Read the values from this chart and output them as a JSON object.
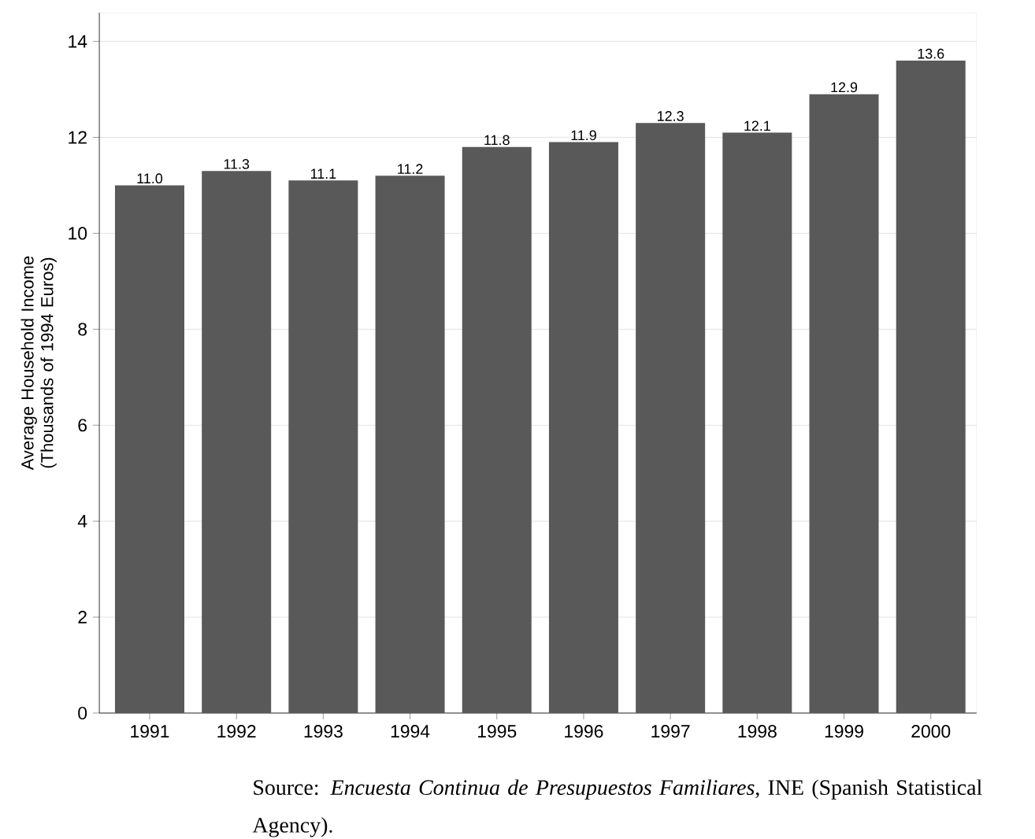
{
  "chart_data": {
    "type": "bar",
    "ylabel": "Average Household Income (Thousands of 1994 Euros)",
    "categories": [
      "1991",
      "1992",
      "1993",
      "1994",
      "1995",
      "1996",
      "1997",
      "1998",
      "1999",
      "2000"
    ],
    "values": [
      11.0,
      11.3,
      11.1,
      11.2,
      11.8,
      11.9,
      12.3,
      12.1,
      12.9,
      13.6
    ],
    "value_labels": [
      "11.0",
      "11.3",
      "11.1",
      "11.2",
      "11.8",
      "11.9",
      "12.3",
      "12.1",
      "12.9",
      "13.6"
    ],
    "color": "#595959",
    "ylim": [
      0,
      14.6
    ],
    "yticks": [
      0,
      2,
      4,
      6,
      8,
      10,
      12,
      14
    ],
    "grid": "y",
    "annotations": [
      "Source: *Encuesta Continua de Presupuestos Familiares*, INE (Spanish Statistical Agency)."
    ]
  }
}
